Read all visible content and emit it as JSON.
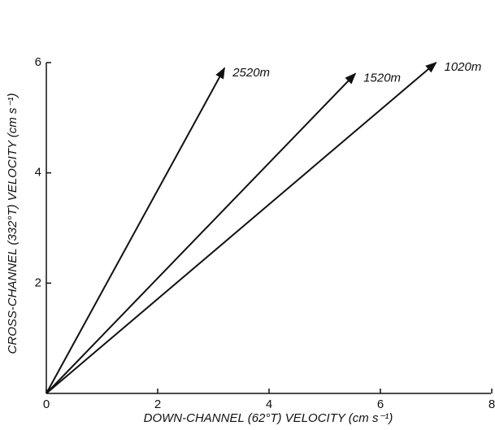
{
  "chart_data": {
    "type": "vector",
    "x_label": "DOWN-CHANNEL (62°T)  VELOCITY (cm s⁻¹)",
    "y_label": "CROSS-CHANNEL (332°T)   VELOCITY (cm s⁻¹)",
    "xlim": [
      0,
      8
    ],
    "ylim": [
      0,
      6
    ],
    "xticks": [
      0,
      2,
      4,
      6,
      8
    ],
    "yticks": [
      2,
      4,
      6
    ],
    "color": "#111111",
    "series": [
      {
        "name": "2520m",
        "x": [
          3.2
        ],
        "y": [
          5.9
        ]
      },
      {
        "name": "1520m",
        "x": [
          5.55
        ],
        "y": [
          5.8
        ]
      },
      {
        "name": "1020m",
        "x": [
          7.0
        ],
        "y": [
          6.0
        ]
      }
    ]
  }
}
